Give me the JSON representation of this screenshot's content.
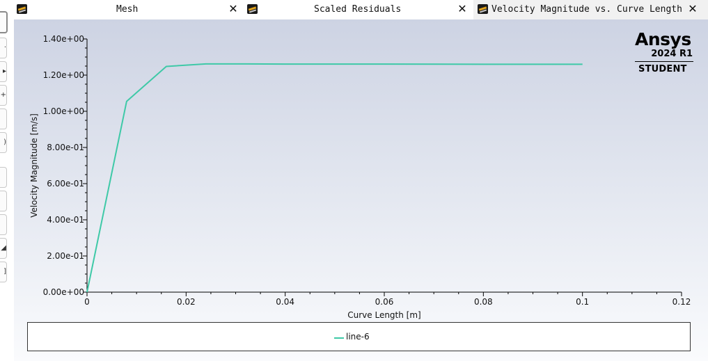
{
  "tabs": [
    {
      "title": "Mesh",
      "close": "✕",
      "icon": "fluent-graphics-icon",
      "active": false
    },
    {
      "title": "Scaled Residuals",
      "close": "✕",
      "icon": "fluent-graphics-icon",
      "active": false
    },
    {
      "title": "Velocity Magnitude vs. Curve Length",
      "close": "✕",
      "icon": "fluent-graphics-icon",
      "active": true
    }
  ],
  "toolbar": {
    "icons": [
      "select-icon",
      "pan-icon",
      "pointer-icon",
      "zoom-icon",
      "box-icon",
      "rotate-icon",
      "fit-icon",
      "view-icon",
      "copy-icon",
      "ruler-icon",
      "bracket-icon"
    ]
  },
  "logo": {
    "name": "Ansys",
    "version": "2024 R1",
    "edition": "STUDENT"
  },
  "legend": {
    "items": [
      "line-6"
    ]
  },
  "colors": {
    "series": "#3ec9a7",
    "axis": "#000000"
  },
  "chart_data": {
    "type": "line",
    "xlabel": "Curve Length [m]",
    "ylabel": "Velocity Magnitude [m/s]",
    "xlim": [
      0,
      0.12
    ],
    "ylim": [
      0,
      1.4
    ],
    "x_ticks": [
      "0",
      "0.02",
      "0.04",
      "0.06",
      "0.08",
      "0.1",
      "0.12"
    ],
    "y_ticks": [
      "0.00e+00",
      "2.00e-01",
      "4.00e-01",
      "6.00e-01",
      "8.00e-01",
      "1.00e+00",
      "1.20e+00",
      "1.40e+00"
    ],
    "grid": false,
    "legend_position": "bottom",
    "series": [
      {
        "name": "line-6",
        "x": [
          0,
          0.008,
          0.016,
          0.024,
          0.032,
          0.04,
          0.06,
          0.08,
          0.1
        ],
        "y": [
          0,
          1.055,
          1.248,
          1.262,
          1.262,
          1.261,
          1.261,
          1.26,
          1.26
        ]
      }
    ]
  }
}
